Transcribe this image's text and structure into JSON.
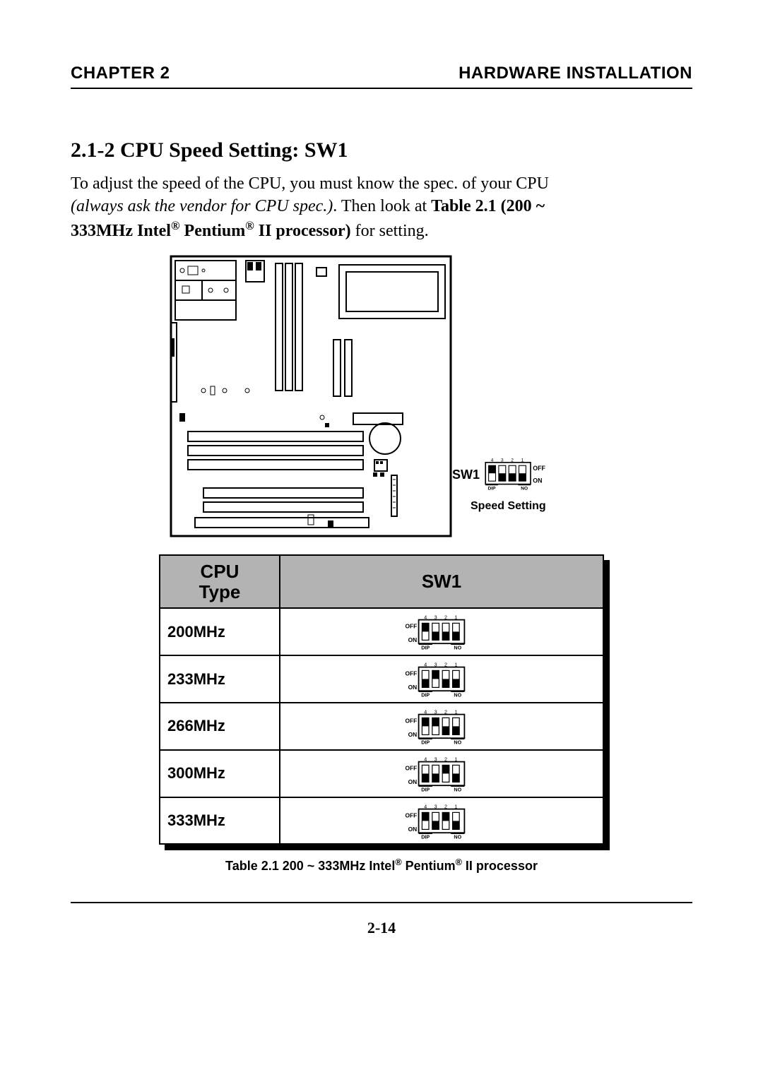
{
  "header": {
    "left": "CHAPTER 2",
    "right": "HARDWARE INSTALLATION"
  },
  "section_title": "2.1-2  CPU Speed Setting:  SW1",
  "body": {
    "line1a": "To adjust the speed of  the CPU, you must know the spec. of your CPU",
    "line2_italic": "(always ask the vendor for CPU spec.)",
    "line2_rest": ".   Then look at  ",
    "line2_bold": "Table 2.1 (200 ~",
    "line3_bold_a": "333MHz Intel",
    "line3_bold_b": " Pentium",
    "line3_bold_c": " II processor)",
    "reg": "®",
    "line3_rest": " for setting."
  },
  "sw1": {
    "label": "SW1",
    "caption": "Speed  Setting",
    "off": "OFF",
    "on": "ON",
    "dip_pos": [
      "up",
      "down",
      "down",
      "down"
    ]
  },
  "table": {
    "headers": {
      "cpu": "CPU\nType",
      "sw1": "SW1"
    },
    "rows": [
      {
        "label": "200MHz",
        "dip": [
          "up",
          "down",
          "down",
          "down"
        ]
      },
      {
        "label": "233MHz",
        "dip": [
          "down",
          "up",
          "down",
          "down"
        ]
      },
      {
        "label": "266MHz",
        "dip": [
          "up",
          "up",
          "down",
          "down"
        ]
      },
      {
        "label": "300MHz",
        "dip": [
          "down",
          "down",
          "up",
          "down"
        ]
      },
      {
        "label": "333MHz",
        "dip": [
          "up",
          "down",
          "up",
          "down"
        ]
      }
    ],
    "caption_a": "Table 2.1 200 ~ 333MHz  Intel",
    "caption_b": " Pentium",
    "caption_c": " II processor",
    "off": "OFF",
    "on": "ON",
    "dip_label": "DIP",
    "no_label": "NO"
  },
  "page_number": "2-14",
  "colors": {
    "header_gray": "#b3b3b3",
    "black": "#000000",
    "white": "#ffffff"
  }
}
